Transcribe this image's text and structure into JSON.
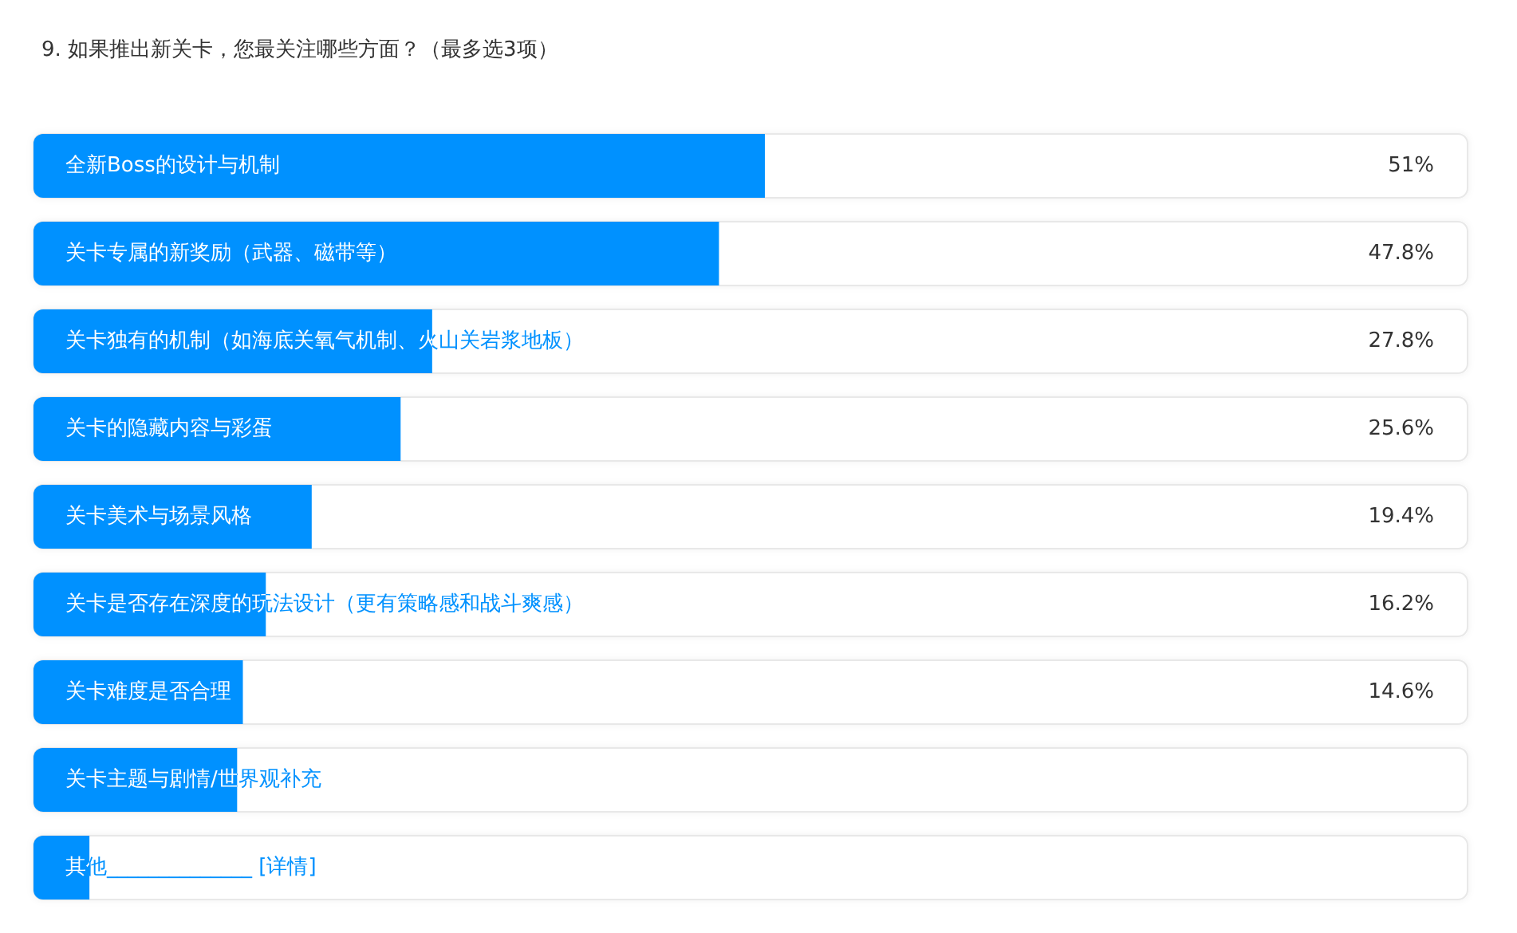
{
  "chart_data": {
    "type": "bar",
    "title": "9. 如果推出新关卡，您最关注哪些方面？（最多选3项）",
    "orientation": "horizontal",
    "categories": [
      "全新Boss的设计与机制",
      "关卡专属的新奖励（武器、磁带等）",
      "关卡独有的机制（如海底关氧气机制、火山关岩浆地板）",
      "关卡的隐藏内容与彩蛋",
      "关卡美术与场景风格",
      "关卡是否存在深度的玩法设计（更有策略感和战斗爽感）",
      "关卡难度是否合理",
      "关卡主题与剧情/世界观补充",
      "其他______________ [详情]"
    ],
    "values": [
      51,
      47.8,
      27.8,
      25.6,
      19.4,
      16.2,
      14.6,
      14.2,
      3.9
    ],
    "value_labels": [
      "51%",
      "47.8%",
      "27.8%",
      "25.6%",
      "19.4%",
      "16.2%",
      "14.6%",
      null,
      null
    ],
    "color": "#0091ff",
    "xlim": [
      0,
      100
    ],
    "tick_labels": "y"
  }
}
